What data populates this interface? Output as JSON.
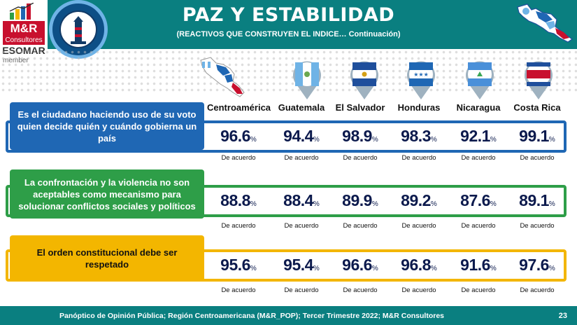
{
  "header": {
    "title": "PAZ Y ESTABILIDAD",
    "subtitle": "(REACTIVOS QUE CONSTRUYEN EL INDICE… Continuación)"
  },
  "logo": {
    "brand": "M&R",
    "company": "Consultores",
    "esomar": "ESOMAR",
    "member": "member"
  },
  "colors": {
    "header_bg": "#0a7f80",
    "blue": "#1f67b4",
    "green": "#2e9e48",
    "gold": "#f3b600",
    "value_text": "#0c1a4d"
  },
  "chart_data": {
    "type": "table",
    "title": "PAZ Y ESTABILIDAD",
    "subtitle": "(REACTIVOS QUE CONSTRUYEN EL INDICE… Continuación)",
    "columns": [
      "Centroamérica",
      "Guatemala",
      "El Salvador",
      "Honduras",
      "Nicaragua",
      "Costa Rica"
    ],
    "value_suffix": "%",
    "rows": [
      {
        "label": "Es el ciudadano haciendo uso de su voto quien decide quién y cuándo gobierna un país",
        "sublabel": "De acuerdo",
        "values": [
          96.6,
          94.4,
          98.9,
          98.3,
          92.1,
          99.1
        ]
      },
      {
        "label": "La confrontación y la violencia no son aceptables como mecanismo para solucionar conflictos sociales y políticos",
        "sublabel": "De acuerdo",
        "values": [
          88.8,
          88.4,
          89.9,
          89.2,
          87.6,
          89.1
        ]
      },
      {
        "label": "El orden constitucional debe ser respetado",
        "sublabel": "De acuerdo",
        "values": [
          95.6,
          95.4,
          96.6,
          96.8,
          91.6,
          97.6
        ]
      }
    ]
  },
  "footer": {
    "source": "Panóptico de Opinión Pública; Región Centroamericana (M&R_POP); Tercer Trimestre 2022; M&R Consultores",
    "page": "23"
  }
}
